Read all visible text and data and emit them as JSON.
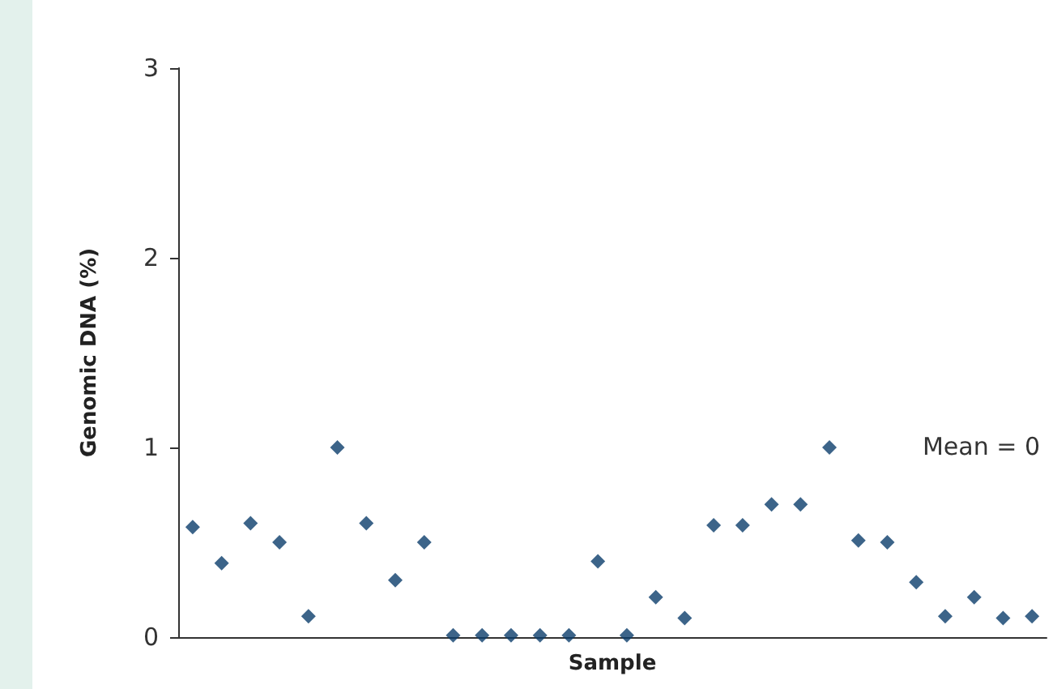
{
  "chart_data": {
    "type": "scatter",
    "xlabel": "Sample",
    "ylabel": "Genomic DNA (%)",
    "categories": [
      null,
      null,
      null,
      null,
      null,
      null,
      null,
      null,
      null,
      null,
      null,
      null,
      null,
      null,
      null,
      null,
      null,
      null,
      null,
      null,
      null,
      null,
      null,
      null,
      null,
      null,
      null,
      null,
      null,
      null
    ],
    "series": [
      {
        "color": "#0b3d6b",
        "values": [
          0.58,
          0.39,
          0.6,
          0.5,
          0.11,
          1.0,
          0.6,
          0.3,
          0.5,
          0.01,
          0.01,
          0.01,
          0.01,
          0.01,
          0.4,
          0.01,
          0.21,
          0.1,
          0.59,
          0.59,
          0.7,
          0.7,
          1.0,
          0.51,
          0.5,
          0.29,
          0.11,
          0.21,
          0.1,
          0.11
        ]
      }
    ],
    "ylim": [
      0,
      3
    ],
    "yticks": [
      0,
      1,
      2,
      3
    ],
    "grid": false,
    "marker": "diamond",
    "tick_labels": "y",
    "annotations": [
      "Mean = 0"
    ]
  }
}
